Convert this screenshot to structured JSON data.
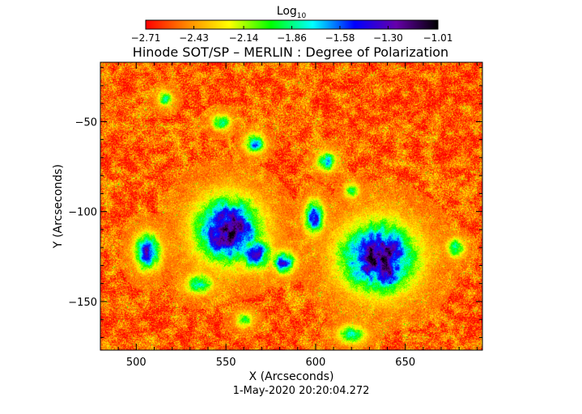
{
  "chart_data": {
    "type": "heatmap",
    "title": "Hinode SOT/SP – MERLIN : Degree of Polarization",
    "xlabel": "X (Arcseconds)",
    "ylabel": "Y (Arcseconds)",
    "timestamp": "1-May-2020 20:20:04.272",
    "xlim": [
      480,
      693
    ],
    "ylim": [
      -177,
      -17
    ],
    "x_ticks": [
      500,
      550,
      600,
      650
    ],
    "x_tick_labels": [
      "500",
      "550",
      "600",
      "650"
    ],
    "y_ticks": [
      -50,
      -100,
      -150
    ],
    "y_tick_labels": [
      "−50",
      "−100",
      "−150"
    ],
    "colorbar": {
      "title": "Log",
      "title_subscript": "10",
      "min": -2.71,
      "max": -1.01,
      "tick_values": [
        -2.71,
        -2.43,
        -2.14,
        -1.86,
        -1.58,
        -1.3,
        -1.01
      ],
      "tick_labels": [
        "−2.71",
        "−2.43",
        "−2.14",
        "−1.86",
        "−1.58",
        "−1.30",
        "−1.01"
      ],
      "colors": [
        "#ff0000",
        "#ff8800",
        "#ffff00",
        "#00ff00",
        "#00ffff",
        "#0000ff",
        "#6600aa",
        "#000000"
      ]
    },
    "background_level": -2.55,
    "regions": [
      {
        "x": 551,
        "y": -110,
        "rx": 20,
        "ry": 20,
        "peak": -1.15
      },
      {
        "x": 566,
        "y": -123,
        "rx": 10,
        "ry": 10,
        "peak": -1.45
      },
      {
        "x": 635,
        "y": -125,
        "rx": 23,
        "ry": 21,
        "peak": -1.15
      },
      {
        "x": 640,
        "y": -132,
        "rx": 10,
        "ry": 14,
        "peak": -1.2
      },
      {
        "x": 506,
        "y": -122,
        "rx": 8,
        "ry": 11,
        "peak": -1.4
      },
      {
        "x": 599,
        "y": -103,
        "rx": 6,
        "ry": 10,
        "peak": -1.45
      },
      {
        "x": 582,
        "y": -128,
        "rx": 7,
        "ry": 7,
        "peak": -1.5
      },
      {
        "x": 566,
        "y": -62,
        "rx": 6,
        "ry": 6,
        "peak": -1.6
      },
      {
        "x": 547,
        "y": -50,
        "rx": 6,
        "ry": 5,
        "peak": -1.85
      },
      {
        "x": 606,
        "y": -72,
        "rx": 6,
        "ry": 6,
        "peak": -1.75
      },
      {
        "x": 535,
        "y": -140,
        "rx": 9,
        "ry": 7,
        "peak": -1.85
      },
      {
        "x": 620,
        "y": -168,
        "rx": 9,
        "ry": 6,
        "peak": -1.85
      },
      {
        "x": 678,
        "y": -120,
        "rx": 6,
        "ry": 6,
        "peak": -1.85
      },
      {
        "x": 516,
        "y": -37,
        "rx": 5,
        "ry": 5,
        "peak": -1.9
      },
      {
        "x": 620,
        "y": -88,
        "rx": 5,
        "ry": 5,
        "peak": -1.95
      },
      {
        "x": 560,
        "y": -160,
        "rx": 6,
        "ry": 5,
        "peak": -2.0
      }
    ]
  }
}
